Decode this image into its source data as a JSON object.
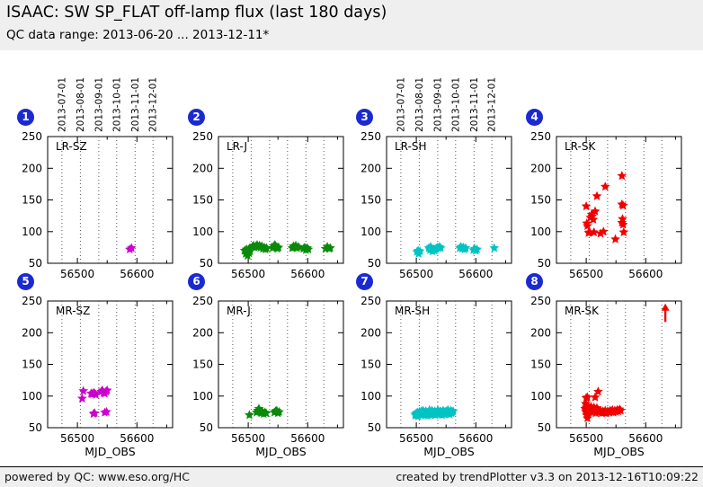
{
  "header": {
    "title": "ISAAC: SW SP_FLAT off-lamp flux (last 180 days)",
    "subtitle": "QC data range: 2013-06-20 ... 2013-12-11*"
  },
  "footer": {
    "left": "powered by QC: www.eso.org/HC",
    "right": "created by trendPlotter v3.3 on 2013-12-16T10:09:22"
  },
  "colors": {
    "badge": "#1b2ad0",
    "magenta": "#cc00cc",
    "green": "#0a8a0a",
    "cyan": "#00c3c3",
    "red": "#f20000",
    "band_bg": "#efefef"
  },
  "axis": {
    "xlabel": "MJD_OBS",
    "xlim": [
      56450,
      56660
    ],
    "ylim": [
      50,
      250
    ],
    "xticks_major": [
      56500,
      56600
    ],
    "xticks_minor": [
      56450,
      56550,
      56650
    ],
    "yticks": [
      50,
      100,
      150,
      200,
      250
    ],
    "grid_mjd": [
      56474,
      56505,
      56536,
      56566,
      56597,
      56627
    ],
    "date_labels": [
      "2013-07-01",
      "2013-08-01",
      "2013-09-01",
      "2013-10-01",
      "2013-11-01",
      "2013-12-01"
    ]
  },
  "chart_data": [
    {
      "type": "scatter",
      "badge": "1",
      "label": "LR-SZ",
      "color": "magenta",
      "show_dates": true,
      "show_xlabel": false,
      "points": [
        [
          56588,
          72
        ],
        [
          56591,
          74
        ]
      ]
    },
    {
      "type": "scatter",
      "badge": "2",
      "label": "LR-J",
      "color": "green",
      "show_dates": false,
      "show_xlabel": false,
      "points": [
        [
          56494,
          70
        ],
        [
          56496,
          65
        ],
        [
          56497,
          72
        ],
        [
          56498,
          68
        ],
        [
          56499,
          62
        ],
        [
          56500,
          71
        ],
        [
          56501,
          66
        ],
        [
          56502,
          73
        ],
        [
          56503,
          69
        ],
        [
          56507,
          76
        ],
        [
          56509,
          78
        ],
        [
          56511,
          75
        ],
        [
          56513,
          77
        ],
        [
          56515,
          79
        ],
        [
          56517,
          76
        ],
        [
          56519,
          78
        ],
        [
          56521,
          75
        ],
        [
          56523,
          77
        ],
        [
          56525,
          73
        ],
        [
          56527,
          75
        ],
        [
          56529,
          72
        ],
        [
          56531,
          74
        ],
        [
          56541,
          74
        ],
        [
          56543,
          77
        ],
        [
          56545,
          79
        ],
        [
          56547,
          76
        ],
        [
          56549,
          73
        ],
        [
          56551,
          75
        ],
        [
          56574,
          74
        ],
        [
          56576,
          77
        ],
        [
          56578,
          75
        ],
        [
          56580,
          78
        ],
        [
          56582,
          74
        ],
        [
          56584,
          76
        ],
        [
          56593,
          73
        ],
        [
          56595,
          75
        ],
        [
          56597,
          71
        ],
        [
          56599,
          74
        ],
        [
          56601,
          72
        ],
        [
          56630,
          73
        ],
        [
          56633,
          76
        ],
        [
          56636,
          73
        ],
        [
          56638,
          74
        ]
      ]
    },
    {
      "type": "scatter",
      "badge": "3",
      "label": "LR-SH",
      "color": "cyan",
      "show_dates": true,
      "show_xlabel": false,
      "points": [
        [
          56501,
          68
        ],
        [
          56503,
          70
        ],
        [
          56504,
          65
        ],
        [
          56506,
          69
        ],
        [
          56521,
          74
        ],
        [
          56523,
          71
        ],
        [
          56524,
          76
        ],
        [
          56526,
          73
        ],
        [
          56527,
          69
        ],
        [
          56529,
          72
        ],
        [
          56531,
          70
        ],
        [
          56533,
          73
        ],
        [
          56535,
          75
        ],
        [
          56537,
          74
        ],
        [
          56539,
          76
        ],
        [
          56541,
          74
        ],
        [
          56573,
          74
        ],
        [
          56575,
          76
        ],
        [
          56577,
          73
        ],
        [
          56579,
          75
        ],
        [
          56581,
          72
        ],
        [
          56583,
          74
        ],
        [
          56596,
          71
        ],
        [
          56598,
          73
        ],
        [
          56600,
          70
        ],
        [
          56602,
          72
        ],
        [
          56631,
          74
        ]
      ]
    },
    {
      "type": "scatter",
      "badge": "4",
      "label": "LR-SK",
      "color": "red",
      "show_dates": false,
      "show_xlabel": false,
      "points": [
        [
          56500,
          140
        ],
        [
          56501,
          113
        ],
        [
          56502,
          109
        ],
        [
          56504,
          98
        ],
        [
          56506,
          99
        ],
        [
          56507,
          122
        ],
        [
          56509,
          127
        ],
        [
          56510,
          124
        ],
        [
          56512,
          119
        ],
        [
          56513,
          99
        ],
        [
          56515,
          132
        ],
        [
          56518,
          156
        ],
        [
          56524,
          97
        ],
        [
          56529,
          100
        ],
        [
          56532,
          171
        ],
        [
          56549,
          88
        ],
        [
          56560,
          188
        ],
        [
          56560,
          143
        ],
        [
          56562,
          141
        ],
        [
          56561,
          120
        ],
        [
          56560,
          114
        ],
        [
          56562,
          111
        ],
        [
          56563,
          99
        ]
      ]
    },
    {
      "type": "scatter",
      "badge": "5",
      "label": "MR-SZ",
      "color": "magenta",
      "show_dates": false,
      "show_xlabel": true,
      "points": [
        [
          56508,
          96
        ],
        [
          56510,
          108
        ],
        [
          56523,
          104
        ],
        [
          56525,
          103
        ],
        [
          56527,
          105
        ],
        [
          56529,
          104
        ],
        [
          56531,
          102
        ],
        [
          56527,
          72
        ],
        [
          56529,
          73
        ],
        [
          56540,
          107
        ],
        [
          56542,
          109
        ],
        [
          56544,
          105
        ],
        [
          56546,
          104
        ],
        [
          56548,
          107
        ],
        [
          56550,
          109
        ],
        [
          56546,
          74
        ],
        [
          56549,
          75
        ]
      ]
    },
    {
      "type": "scatter",
      "badge": "6",
      "label": "MR-J",
      "color": "green",
      "show_dates": false,
      "show_xlabel": true,
      "points": [
        [
          56502,
          70
        ],
        [
          56514,
          74
        ],
        [
          56516,
          77
        ],
        [
          56518,
          80
        ],
        [
          56520,
          76
        ],
        [
          56522,
          73
        ],
        [
          56524,
          75
        ],
        [
          56526,
          72
        ],
        [
          56528,
          74
        ],
        [
          56530,
          73
        ],
        [
          56544,
          74
        ],
        [
          56546,
          76
        ],
        [
          56548,
          77
        ],
        [
          56550,
          73
        ],
        [
          56552,
          75
        ]
      ]
    },
    {
      "type": "scatter",
      "badge": "7",
      "label": "MR-SH",
      "color": "cyan",
      "show_dates": false,
      "show_xlabel": true,
      "points": [
        [
          56498,
          71
        ],
        [
          56499,
          69
        ],
        [
          56500,
          73
        ],
        [
          56501,
          70
        ],
        [
          56502,
          74
        ],
        [
          56503,
          68
        ],
        [
          56504,
          72
        ],
        [
          56505,
          75
        ],
        [
          56506,
          71
        ],
        [
          56507,
          73
        ],
        [
          56508,
          76
        ],
        [
          56509,
          70
        ],
        [
          56510,
          74
        ],
        [
          56511,
          77
        ],
        [
          56512,
          72
        ],
        [
          56513,
          75
        ],
        [
          56514,
          70
        ],
        [
          56515,
          73
        ],
        [
          56516,
          76
        ],
        [
          56517,
          71
        ],
        [
          56518,
          74
        ],
        [
          56519,
          69
        ],
        [
          56520,
          72
        ],
        [
          56521,
          75
        ],
        [
          56522,
          78
        ],
        [
          56523,
          73
        ],
        [
          56524,
          70
        ],
        [
          56525,
          74
        ],
        [
          56526,
          77
        ],
        [
          56527,
          72
        ],
        [
          56528,
          75
        ],
        [
          56529,
          71
        ],
        [
          56530,
          73
        ],
        [
          56531,
          76
        ],
        [
          56532,
          70
        ],
        [
          56533,
          74
        ],
        [
          56534,
          72
        ],
        [
          56535,
          75
        ],
        [
          56536,
          78
        ],
        [
          56537,
          73
        ],
        [
          56538,
          71
        ],
        [
          56539,
          74
        ],
        [
          56540,
          76
        ],
        [
          56541,
          72
        ],
        [
          56542,
          75
        ],
        [
          56543,
          70
        ],
        [
          56544,
          73
        ],
        [
          56545,
          77
        ],
        [
          56546,
          74
        ],
        [
          56547,
          71
        ],
        [
          56548,
          75
        ],
        [
          56549,
          73
        ],
        [
          56550,
          76
        ],
        [
          56551,
          72
        ],
        [
          56552,
          74
        ],
        [
          56553,
          78
        ],
        [
          56554,
          73
        ],
        [
          56555,
          75
        ],
        [
          56556,
          71
        ],
        [
          56557,
          74
        ],
        [
          56558,
          77
        ],
        [
          56559,
          73
        ],
        [
          56560,
          75
        ],
        [
          56562,
          76
        ]
      ]
    },
    {
      "type": "scatter",
      "badge": "8",
      "label": "MR-SK",
      "color": "red",
      "show_dates": false,
      "show_xlabel": true,
      "points": [
        [
          56500,
          97
        ],
        [
          56502,
          98
        ],
        [
          56499,
          88
        ],
        [
          56501,
          85
        ],
        [
          56500,
          78
        ],
        [
          56501,
          70
        ],
        [
          56502,
          65
        ],
        [
          56515,
          98
        ],
        [
          56520,
          107
        ],
        [
          56498,
          80
        ],
        [
          56499,
          76
        ],
        [
          56500,
          82
        ],
        [
          56501,
          74
        ],
        [
          56502,
          79
        ],
        [
          56503,
          72
        ],
        [
          56504,
          77
        ],
        [
          56505,
          81
        ],
        [
          56506,
          75
        ],
        [
          56507,
          79
        ],
        [
          56508,
          83
        ],
        [
          56509,
          76
        ],
        [
          56510,
          80
        ],
        [
          56511,
          74
        ],
        [
          56512,
          78
        ],
        [
          56513,
          82
        ],
        [
          56514,
          76
        ],
        [
          56515,
          79
        ],
        [
          56516,
          73
        ],
        [
          56517,
          77
        ],
        [
          56518,
          81
        ],
        [
          56519,
          75
        ],
        [
          56520,
          78
        ],
        [
          56522,
          74
        ],
        [
          56524,
          77
        ],
        [
          56526,
          73
        ],
        [
          56528,
          76
        ],
        [
          56530,
          74
        ],
        [
          56532,
          77
        ],
        [
          56534,
          73
        ],
        [
          56536,
          76
        ],
        [
          56538,
          74
        ],
        [
          56540,
          77
        ],
        [
          56542,
          75
        ],
        [
          56544,
          78
        ],
        [
          56546,
          74
        ],
        [
          56548,
          77
        ],
        [
          56550,
          75
        ],
        [
          56552,
          78
        ],
        [
          56554,
          76
        ],
        [
          56556,
          79
        ],
        [
          56558,
          77
        ]
      ],
      "arrow": {
        "x": 56633,
        "y_from": 217,
        "y_to": 246
      }
    }
  ]
}
